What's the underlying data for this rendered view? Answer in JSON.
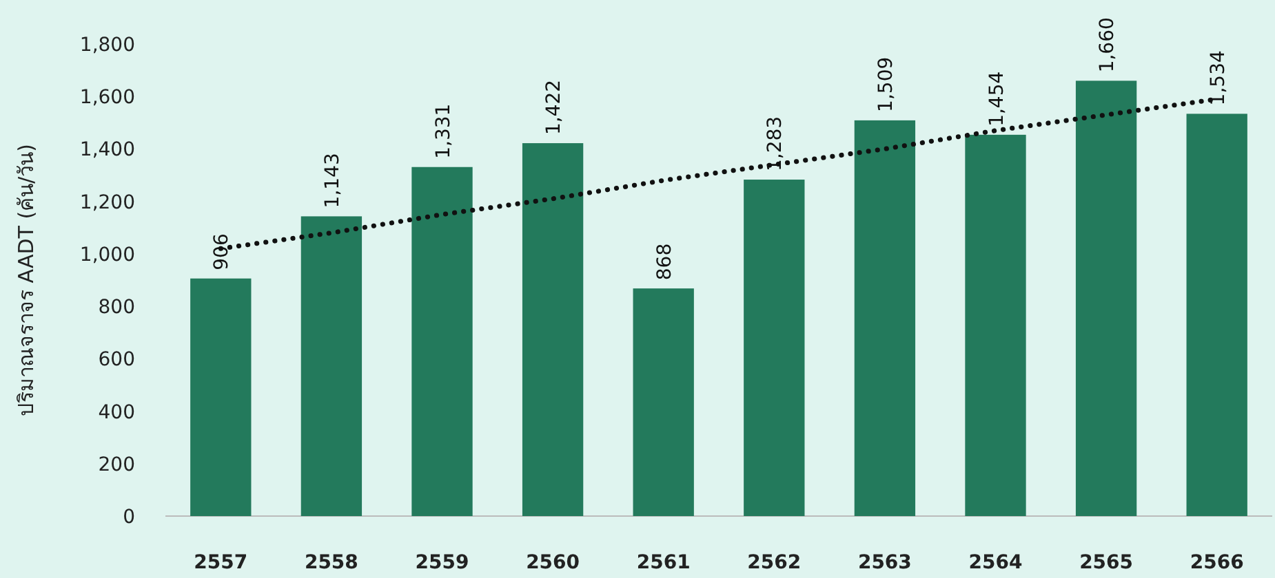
{
  "chart_data": {
    "type": "bar",
    "ylabel": "ปริมาณจราจร AADT (คัน/วัน)",
    "categories": [
      "2557",
      "2558",
      "2559",
      "2560",
      "2561",
      "2562",
      "2563",
      "2564",
      "2565",
      "2566"
    ],
    "series": [
      {
        "color": "#237a5c",
        "values": [
          906,
          1143,
          1331,
          1422,
          868,
          1283,
          1509,
          1454,
          1660,
          1534
        ],
        "value_labels": [
          "906",
          "1,143",
          "1,331",
          "1,422",
          "868",
          "1,283",
          "1,509",
          "1,454",
          "1,660",
          "1,534"
        ]
      },
      {
        "type": "line",
        "color": "#111111",
        "line_style": "dotted",
        "values": [
          1020,
          1080,
          1150,
          1210,
          1280,
          1340,
          1400,
          1470,
          1530,
          1590
        ]
      }
    ],
    "ylim": [
      0,
      1800
    ],
    "yticks": [
      {
        "value": 0,
        "label": "0"
      },
      {
        "value": 200,
        "label": "200"
      },
      {
        "value": 400,
        "label": "400"
      },
      {
        "value": 600,
        "label": "600"
      },
      {
        "value": 800,
        "label": "800"
      },
      {
        "value": 1000,
        "label": "1,000"
      },
      {
        "value": 1200,
        "label": "1,200"
      },
      {
        "value": 1400,
        "label": "1,400"
      },
      {
        "value": 1600,
        "label": "1,600"
      },
      {
        "value": 1800,
        "label": "1,800"
      }
    ]
  }
}
